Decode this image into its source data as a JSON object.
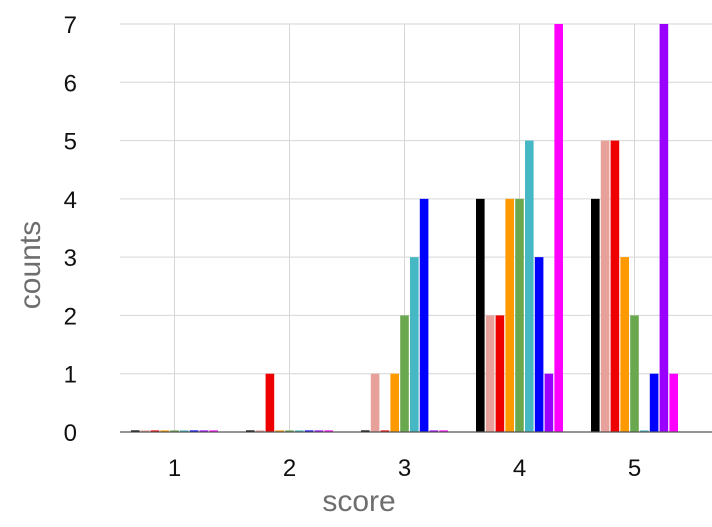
{
  "chart_data": {
    "type": "bar",
    "title": "",
    "xlabel": "score",
    "ylabel": "counts",
    "categories": [
      "1",
      "2",
      "3",
      "4",
      "5"
    ],
    "ylim": [
      0,
      7
    ],
    "yticks": [
      0,
      1,
      2,
      3,
      4,
      5,
      6,
      7
    ],
    "grid": true,
    "legend": "none",
    "series": [
      {
        "color": "#000000",
        "values": [
          0,
          0,
          0,
          4,
          4
        ]
      },
      {
        "color": "#e8a09a",
        "values": [
          0,
          0,
          1,
          2,
          5
        ]
      },
      {
        "color": "#ee0000",
        "values": [
          0,
          1,
          0,
          2,
          5
        ]
      },
      {
        "color": "#ff9900",
        "values": [
          0,
          0,
          1,
          4,
          3
        ]
      },
      {
        "color": "#6aa84f",
        "values": [
          0,
          0,
          2,
          4,
          2
        ]
      },
      {
        "color": "#45b8c4",
        "values": [
          0,
          0,
          3,
          5,
          0
        ]
      },
      {
        "color": "#0000ff",
        "values": [
          0,
          0,
          4,
          3,
          1
        ]
      },
      {
        "color": "#9900ff",
        "values": [
          0,
          0,
          0,
          1,
          7
        ]
      },
      {
        "color": "#ff00ff",
        "values": [
          0,
          0,
          0,
          7,
          1
        ]
      }
    ]
  }
}
